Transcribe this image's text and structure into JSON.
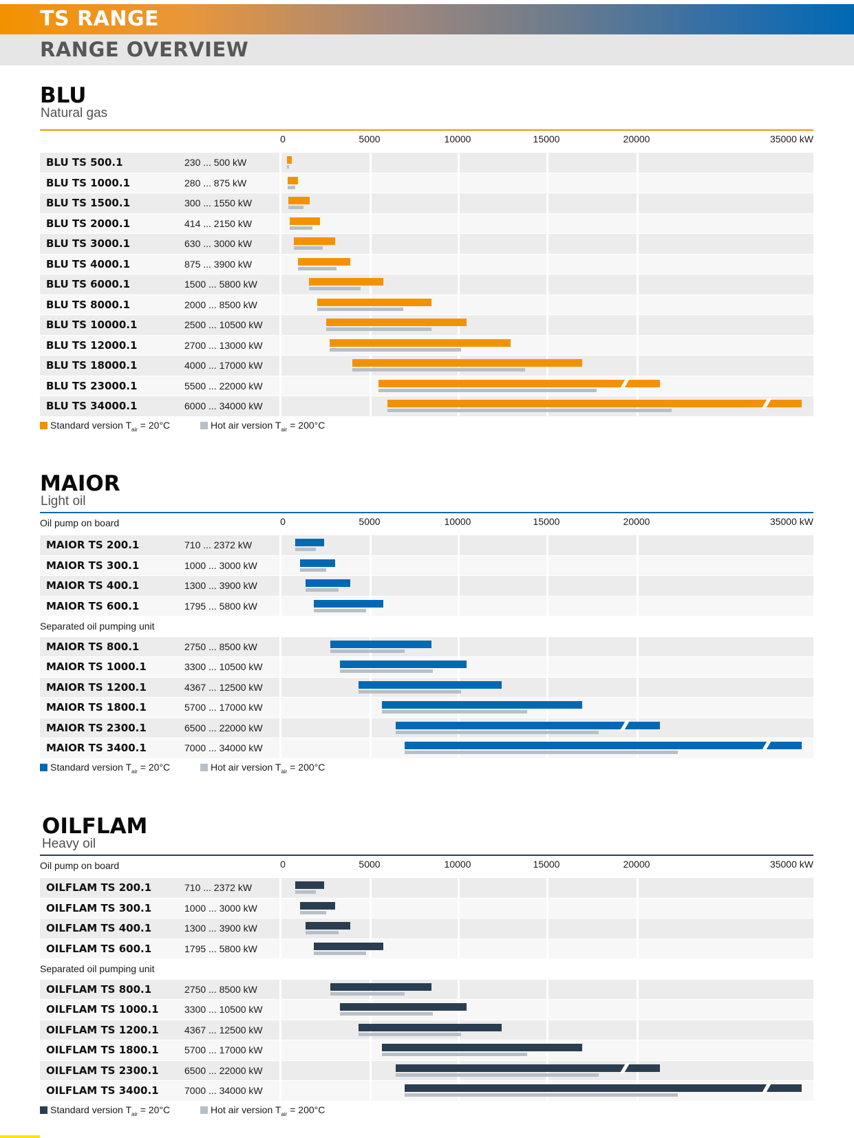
{
  "header": {
    "title": "TS RANGE",
    "subtitle": "RANGE OVERVIEW"
  },
  "colors": {
    "blu": "#f39200",
    "maior": "#0069b4",
    "oilflam": "#2b3e51",
    "hot_air": "#b7bfc7"
  },
  "chart_data": [
    {
      "type": "bar",
      "title": "BLU",
      "subtitle": "Natural gas",
      "unit": "kW",
      "x_ticks": [
        "0",
        "5000",
        "10000",
        "15000",
        "20000",
        "35000 kW"
      ],
      "legend": [
        "Standard version T",
        "Hot air version T"
      ],
      "legend_suffix": "air",
      "legend_value": " = 20°C",
      "legend_value_hot": " = 200°C",
      "groups": [
        {
          "label": "",
          "rows": [
            {
              "name": "BLU TS 500.1",
              "range_label": "230 ... 500 kW",
              "min": 230,
              "max": 500,
              "hot_max": 300
            },
            {
              "name": "BLU TS 1000.1",
              "range_label": "280 ... 875 kW",
              "min": 280,
              "max": 875,
              "hot_max": 700
            },
            {
              "name": "BLU TS 1500.1",
              "range_label": "300 ... 1550 kW",
              "min": 300,
              "max": 1550,
              "hot_max": 1200
            },
            {
              "name": "BLU TS 2000.1",
              "range_label": "414 ... 2150 kW",
              "min": 414,
              "max": 2150,
              "hot_max": 1700
            },
            {
              "name": "BLU TS 3000.1",
              "range_label": "630 ... 3000 kW",
              "min": 630,
              "max": 3000,
              "hot_max": 2300
            },
            {
              "name": "BLU TS 4000.1",
              "range_label": "875 ... 3900 kW",
              "min": 875,
              "max": 3900,
              "hot_max": 3100
            },
            {
              "name": "BLU TS 6000.1",
              "range_label": "1500 ... 5800 kW",
              "min": 1500,
              "max": 5800,
              "hot_max": 4500
            },
            {
              "name": "BLU TS 8000.1",
              "range_label": "2000 ... 8500 kW",
              "min": 2000,
              "max": 8500,
              "hot_max": 6900
            },
            {
              "name": "BLU TS 10000.1",
              "range_label": "2500 ... 10500 kW",
              "min": 2500,
              "max": 10500,
              "hot_max": 8500
            },
            {
              "name": "BLU TS 12000.1",
              "range_label": "2700 ... 13000 kW",
              "min": 2700,
              "max": 13000,
              "hot_max": 10200
            },
            {
              "name": "BLU TS 18000.1",
              "range_label": "4000 ... 17000 kW",
              "min": 4000,
              "max": 17000,
              "hot_max": 13800
            },
            {
              "name": "BLU TS 23000.1",
              "range_label": "5500 ... 22000 kW",
              "min": 5500,
              "max": 22000,
              "hot_max": 17800
            },
            {
              "name": "BLU TS 34000.1",
              "range_label": "6000 ... 34000 kW",
              "min": 6000,
              "max": 34000,
              "hot_max": 23000
            }
          ]
        }
      ]
    },
    {
      "type": "bar",
      "title": "MAIOR",
      "subtitle": "Light oil",
      "unit": "kW",
      "x_ticks": [
        "0",
        "5000",
        "10000",
        "15000",
        "20000",
        "35000 kW"
      ],
      "legend": [
        "Standard version T",
        "Hot air version T"
      ],
      "legend_suffix": "air",
      "legend_value": " = 20°C",
      "legend_value_hot": " = 200°C",
      "groups": [
        {
          "label": "Oil pump on board",
          "rows": [
            {
              "name": "MAIOR TS 200.1",
              "range_label": "710 ... 2372 kW",
              "min": 710,
              "max": 2372,
              "hot_max": 1900
            },
            {
              "name": "MAIOR TS 300.1",
              "range_label": "1000 ... 3000 kW",
              "min": 1000,
              "max": 3000,
              "hot_max": 2500
            },
            {
              "name": "MAIOR TS 400.1",
              "range_label": "1300 ... 3900 kW",
              "min": 1300,
              "max": 3900,
              "hot_max": 3200
            },
            {
              "name": "MAIOR TS 600.1",
              "range_label": "1795 ... 5800 kW",
              "min": 1795,
              "max": 5800,
              "hot_max": 4800
            }
          ]
        },
        {
          "label": "Separated oil pumping unit",
          "rows": [
            {
              "name": "MAIOR TS 800.1",
              "range_label": "2750 ... 8500 kW",
              "min": 2750,
              "max": 8500,
              "hot_max": 7000
            },
            {
              "name": "MAIOR TS 1000.1",
              "range_label": "3300 ... 10500 kW",
              "min": 3300,
              "max": 10500,
              "hot_max": 8600
            },
            {
              "name": "MAIOR TS 1200.1",
              "range_label": "4367 ... 12500 kW",
              "min": 4367,
              "max": 12500,
              "hot_max": 10200
            },
            {
              "name": "MAIOR TS 1800.1",
              "range_label": "5700 ... 17000 kW",
              "min": 5700,
              "max": 17000,
              "hot_max": 13900
            },
            {
              "name": "MAIOR TS 2300.1",
              "range_label": "6500 ... 22000 kW",
              "min": 6500,
              "max": 22000,
              "hot_max": 17900
            },
            {
              "name": "MAIOR TS 3400.1",
              "range_label": "7000 ... 34000 kW",
              "min": 7000,
              "max": 34000,
              "hot_max": 23500
            }
          ]
        }
      ]
    },
    {
      "type": "bar",
      "title": "OILFLAM",
      "subtitle": "Heavy oil",
      "unit": "kW",
      "x_ticks": [
        "0",
        "5000",
        "10000",
        "15000",
        "20000",
        "35000 kW"
      ],
      "legend": [
        "Standard version T",
        "Hot air version T"
      ],
      "legend_suffix": "air",
      "legend_value": " = 20°C",
      "legend_value_hot": " = 200°C",
      "groups": [
        {
          "label": "Oil pump on board",
          "rows": [
            {
              "name": "OILFLAM TS 200.1",
              "range_label": "710 ... 2372 kW",
              "min": 710,
              "max": 2372,
              "hot_max": 1900
            },
            {
              "name": "OILFLAM TS 300.1",
              "range_label": "1000 ... 3000 kW",
              "min": 1000,
              "max": 3000,
              "hot_max": 2500
            },
            {
              "name": "OILFLAM TS 400.1",
              "range_label": "1300 ... 3900 kW",
              "min": 1300,
              "max": 3900,
              "hot_max": 3200
            },
            {
              "name": "OILFLAM TS 600.1",
              "range_label": "1795 ... 5800 kW",
              "min": 1795,
              "max": 5800,
              "hot_max": 4800
            }
          ]
        },
        {
          "label": "Separated oil pumping unit",
          "rows": [
            {
              "name": "OILFLAM TS 800.1",
              "range_label": "2750 ... 8500 kW",
              "min": 2750,
              "max": 8500,
              "hot_max": 7000
            },
            {
              "name": "OILFLAM TS 1000.1",
              "range_label": "3300 ... 10500 kW",
              "min": 3300,
              "max": 10500,
              "hot_max": 8600
            },
            {
              "name": "OILFLAM TS 1200.1",
              "range_label": "4367 ... 12500 kW",
              "min": 4367,
              "max": 12500,
              "hot_max": 10200
            },
            {
              "name": "OILFLAM TS 1800.1",
              "range_label": "5700 ... 17000 kW",
              "min": 5700,
              "max": 17000,
              "hot_max": 13900
            },
            {
              "name": "OILFLAM TS 2300.1",
              "range_label": "6500 ... 22000 kW",
              "min": 6500,
              "max": 22000,
              "hot_max": 17900
            },
            {
              "name": "OILFLAM TS 3400.1",
              "range_label": "7000 ... 34000 kW",
              "min": 7000,
              "max": 34000,
              "hot_max": 23500
            }
          ]
        }
      ]
    }
  ]
}
